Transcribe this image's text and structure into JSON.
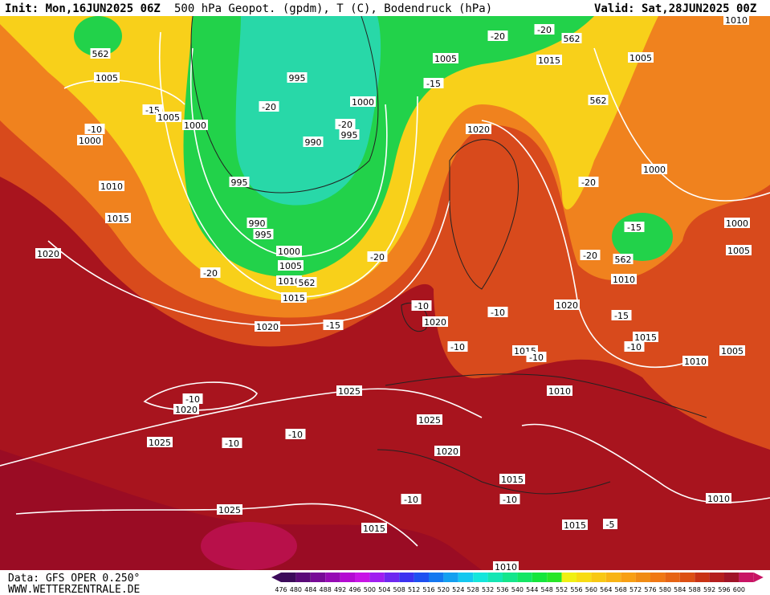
{
  "header": {
    "init": "Init: Mon,16JUN2025 06Z",
    "title": "500 hPa Geopot. (gpdm), T (C), Bodendruck (hPa)",
    "valid": "Valid: Sat,28JUN2025 00Z"
  },
  "footer": {
    "data": "Data: GFS OPER 0.250°",
    "site": "WWW.WETTERZENTRALE.DE"
  },
  "colorbar": {
    "labels": [
      476,
      480,
      484,
      488,
      492,
      496,
      500,
      504,
      508,
      512,
      516,
      520,
      524,
      528,
      532,
      536,
      540,
      544,
      548,
      552,
      556,
      560,
      564,
      568,
      572,
      576,
      580,
      584,
      588,
      592,
      596,
      600
    ],
    "colors": [
      "#3c0a5a",
      "#5a0a78",
      "#780a96",
      "#960ab4",
      "#b40ad2",
      "#c814e6",
      "#a01ef0",
      "#6e28f0",
      "#3c32f0",
      "#1e50f0",
      "#1478f0",
      "#14a0f0",
      "#14c8f0",
      "#14e6dc",
      "#14e6b4",
      "#14e68c",
      "#14e664",
      "#14e63c",
      "#28e628",
      "#f0f014",
      "#f8dc14",
      "#f8c814",
      "#f8b414",
      "#f8a014",
      "#f08c14",
      "#f07814",
      "#e66414",
      "#dc5014",
      "#c83214",
      "#b41e1e",
      "#a01428",
      "#c81464"
    ]
  },
  "map_labels": [
    "562",
    "1005",
    "-15",
    "1005",
    "-10",
    "1000",
    "1000",
    "995",
    "-20",
    "1000",
    "-20",
    "990",
    "995",
    "995",
    "990",
    "995",
    "1000",
    "1005",
    "-20",
    "-20",
    "1010",
    "562",
    "1015",
    "1020",
    "-15",
    "1010",
    "1015",
    "1020",
    "1005",
    "-15",
    "-20",
    "-20",
    "562",
    "1015",
    "1005",
    "562",
    "1020",
    "1000",
    "-20",
    "1000",
    "-15",
    "-20",
    "562",
    "1005",
    "1010",
    "1010",
    "-10",
    "1020",
    "-10",
    "1020",
    "-15",
    "-10",
    "1015",
    "-10",
    "1015",
    "-10",
    "1010",
    "1005",
    "1010",
    "-10",
    "1020",
    "1025",
    "1025",
    "-10",
    "-10",
    "1025",
    "1020",
    "1015",
    "-10",
    "-10",
    "1025",
    "1015",
    "1015",
    "-5",
    "1010",
    "1010"
  ]
}
